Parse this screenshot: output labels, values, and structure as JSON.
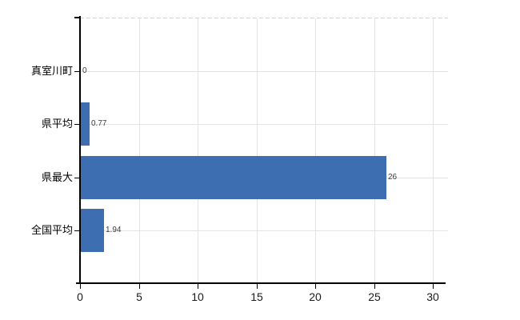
{
  "chart_data": {
    "type": "bar",
    "orientation": "horizontal",
    "title": "",
    "xlabel": "",
    "ylabel": "",
    "categories": [
      "真室川町",
      "県平均",
      "県最大",
      "全国平均"
    ],
    "values": [
      0,
      0.77,
      26,
      1.94
    ],
    "value_labels": [
      "0",
      "0.77",
      "26",
      "1.94"
    ],
    "xlim": [
      0,
      30
    ],
    "x_ticks": [
      "0",
      "5",
      "10",
      "15",
      "20",
      "25",
      "30"
    ],
    "x_tick_values": [
      0,
      5,
      10,
      15,
      20,
      25,
      30
    ],
    "grid": "on",
    "legend": "none"
  },
  "colors": {
    "bar": "#3c6eb1",
    "grid": "#e3e3e3",
    "plot_border_dash": "#d5d5d5",
    "axis": "#000000",
    "tick_label": "#1a1a1a",
    "category_label": "#000000",
    "value_label": "#3d3d3d",
    "background": "#ffffff"
  }
}
